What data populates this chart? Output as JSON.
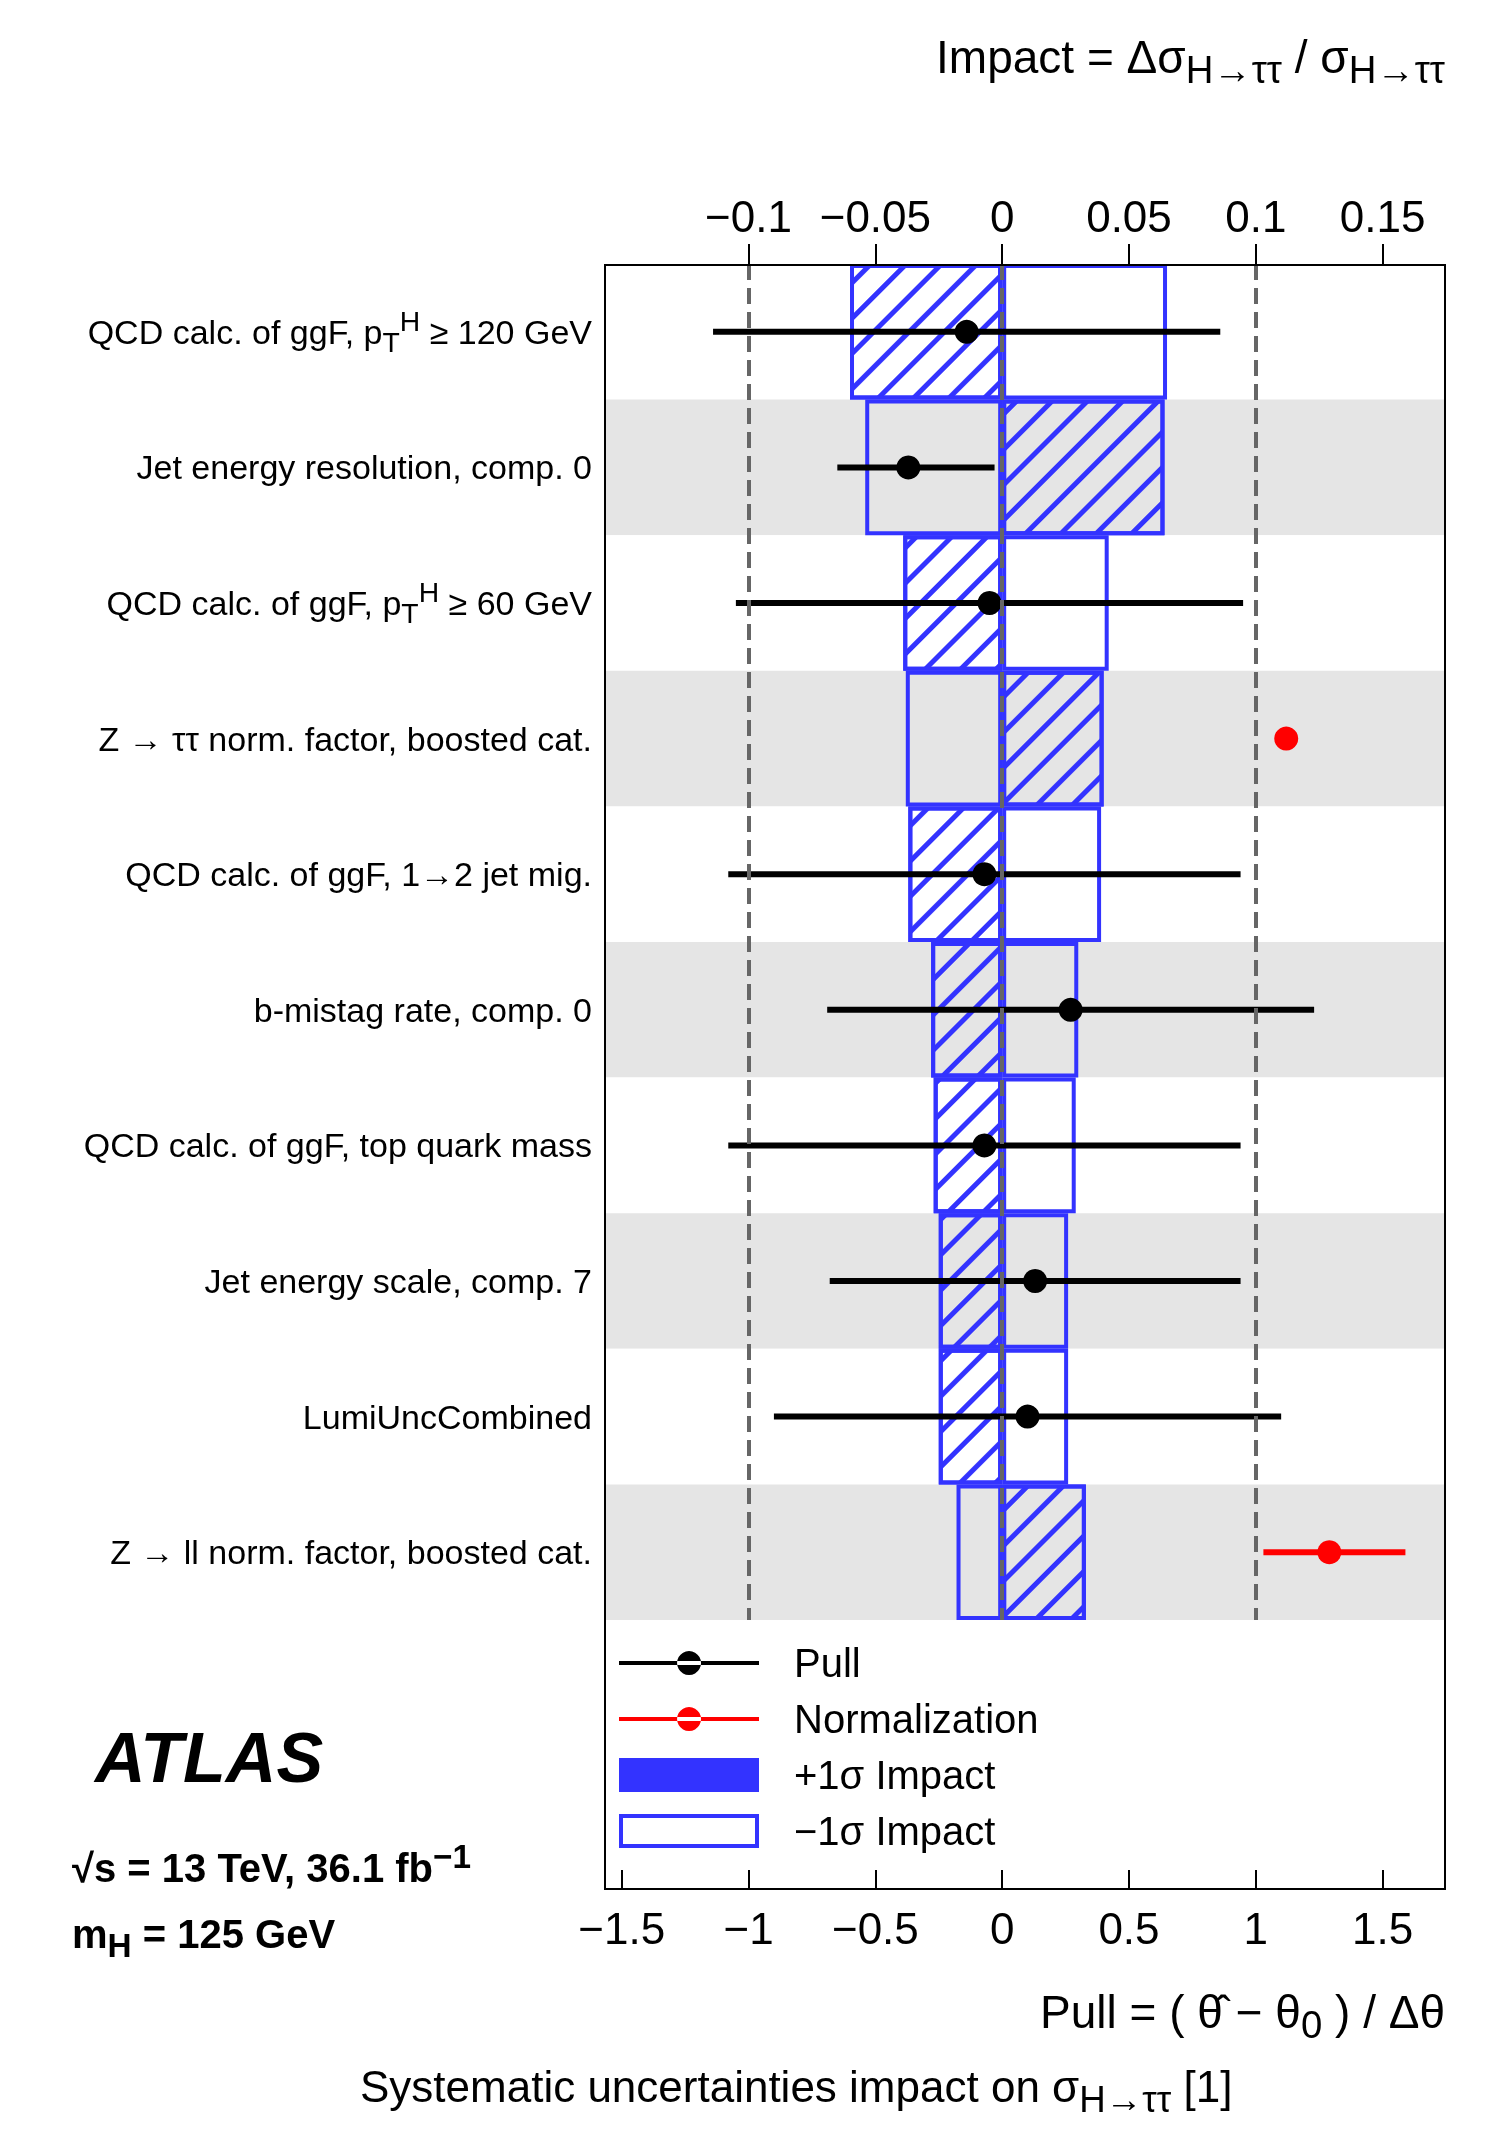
{
  "chart_data": {
    "type": "bar",
    "orientation": "horizontal",
    "categories": [
      "QCD calc. of ggF, p$_{T}$$^{H}$ ≥ 120 GeV",
      "Jet energy resolution, comp. 0",
      "QCD calc. of ggF, p$_{T}$$^{H}$ ≥ 60 GeV",
      "Z → ττ norm. factor, boosted cat.",
      "QCD calc. of ggF, 1→2 jet mig.",
      "b-mistag rate, comp. 0",
      "QCD calc. of ggF, top quark mass",
      "Jet energy scale, comp. 7",
      "LumiUncCombined",
      "Z → ll norm. factor, boosted cat."
    ],
    "series": [
      {
        "name": "Pull",
        "type": "scatter",
        "color": "#000000",
        "values": [
          -0.14,
          -0.37,
          -0.05,
          null,
          -0.07,
          0.27,
          -0.07,
          0.13,
          0.1,
          null
        ],
        "errors": [
          1.0,
          [
            -0.65,
            -0.03
          ],
          1.0,
          null,
          1.01,
          0.96,
          1.01,
          0.81,
          1.0,
          null
        ]
      },
      {
        "name": "Normalization",
        "type": "scatter",
        "color": "#ff0000",
        "values": [
          null,
          null,
          null,
          1.12,
          null,
          null,
          null,
          null,
          null,
          1.29
        ],
        "errors": [
          null,
          null,
          null,
          0.04,
          null,
          null,
          null,
          null,
          null,
          [
            1.03,
            1.59
          ]
        ]
      },
      {
        "name": "+1σ Impact",
        "axis": "x2",
        "color": "#3333ff",
        "values": [
          -0.06,
          0.064,
          -0.039,
          0.04,
          -0.037,
          -0.028,
          -0.027,
          -0.025,
          -0.025,
          0.033
        ]
      },
      {
        "name": "−1σ Impact",
        "axis": "x2",
        "color": "#3333ff",
        "values": [
          0.065,
          -0.054,
          0.042,
          -0.038,
          0.039,
          0.03,
          0.029,
          0.026,
          0.026,
          -0.018
        ]
      }
    ],
    "xlabel": "Pull = ( θ̂ − θ$_{0}$ ) / Δθ",
    "x2label": "Impact = Δσ$_{H→ττ}$ / σ$_{H→ττ}$",
    "xlim": [
      -1.57,
      1.75
    ],
    "xticks": [
      -1.5,
      -1,
      -0.5,
      0,
      0.5,
      1,
      1.5
    ],
    "x2lim": [
      -0.157,
      0.175
    ],
    "x2ticks": [
      -0.1,
      -0.05,
      0,
      0.05,
      0.1,
      0.15
    ],
    "ref_lines": [
      {
        "axis": "x",
        "value": -1,
        "color": "#666666",
        "line_style": "dashed"
      },
      {
        "axis": "x",
        "value": 0,
        "color": "#666666",
        "line_style": "dashed"
      },
      {
        "axis": "x",
        "value": 1,
        "color": "#666666",
        "line_style": "dashed"
      }
    ],
    "marker": "circle",
    "legend": "bottom left",
    "annotations": [
      "ATLAS",
      "√s = 13 TeV, 36.1 fb$^{−1}$",
      "m$_{H}$ = 125 GeV",
      "Systematic uncertainties impact on σ$_{H→ττ}$ [1]"
    ]
  }
}
